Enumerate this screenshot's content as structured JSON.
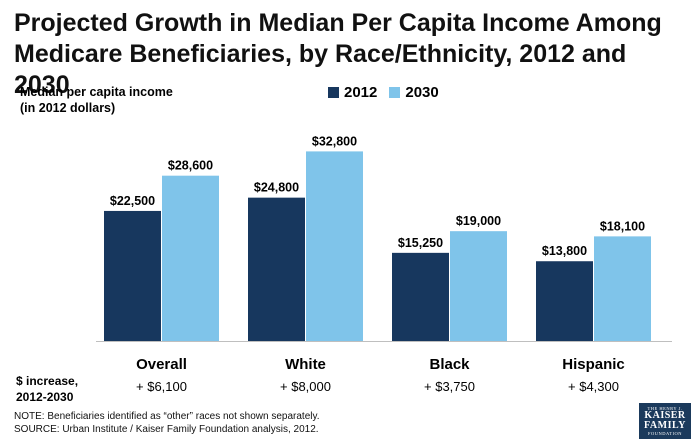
{
  "title": "Projected Growth in Median Per Capita Income Among Medicare Beneficiaries, by Race/Ethnicity, 2012 and 2030",
  "ylabel_line1": "Median per capita income",
  "ylabel_line2": "(in 2012 dollars)",
  "increase_label_line1": "$ increase,",
  "increase_label_line2": "2012-2030",
  "increases": [
    "+ $6,100",
    "+ $8,000",
    "+ $3,750",
    "+ $4,300"
  ],
  "note": "NOTE: Beneficiaries identified as “other” races not shown separately.",
  "source": "SOURCE: Urban Institute / Kaiser Family Foundation analysis, 2012.",
  "logo": {
    "line1": "THE HENRY J.",
    "line2": "KAISER",
    "line3": "FAMILY",
    "line4": "FOUNDATION"
  },
  "colors": {
    "series_2012": "#17375e",
    "series_2030": "#7fc4ea"
  },
  "chart_data": {
    "type": "bar",
    "categories": [
      "Overall",
      "White",
      "Black",
      "Hispanic"
    ],
    "series": [
      {
        "name": "2012",
        "values": [
          22500,
          24800,
          15250,
          13800
        ],
        "labels": [
          "$22,500",
          "$24,800",
          "$15,250",
          "$13,800"
        ]
      },
      {
        "name": "2030",
        "values": [
          28600,
          32800,
          19000,
          18100
        ],
        "labels": [
          "$28,600",
          "$32,800",
          "$19,000",
          "$18,100"
        ]
      }
    ],
    "ylim": [
      0,
      34600
    ],
    "legend_position": "top",
    "grid": false
  }
}
